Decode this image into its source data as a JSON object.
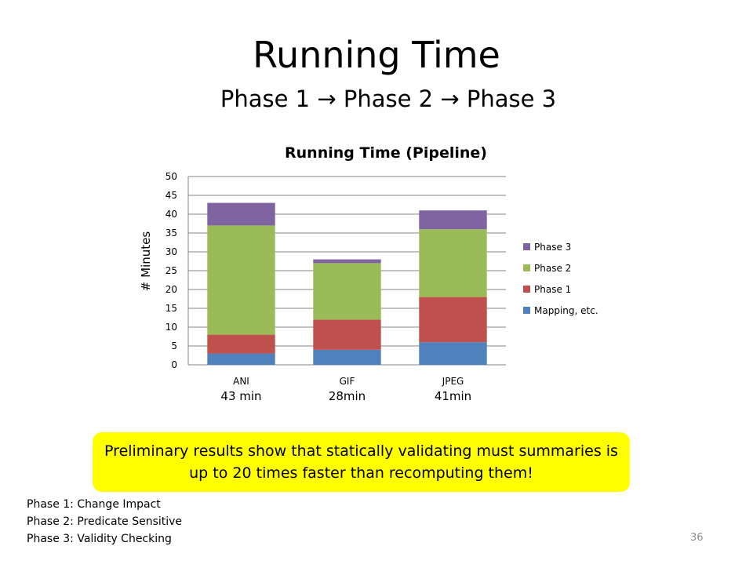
{
  "slide": {
    "title": "Running Time",
    "subtitle": "Phase 1 → Phase 2 → Phase 3",
    "callout": "Preliminary results show that statically validating must summaries is up to 20 times faster than recomputing them!",
    "notes": [
      "Phase 1: Change Impact",
      "Phase 2: Predicate Sensitive",
      "Phase 3: Validity Checking"
    ],
    "page_number": "36"
  },
  "chart_data": {
    "type": "bar",
    "stacked": true,
    "title": "Running Time (Pipeline)",
    "xlabel": "",
    "ylabel": "# Minutes",
    "ylim": [
      0,
      50
    ],
    "yticks": [
      0,
      5,
      10,
      15,
      20,
      25,
      30,
      35,
      40,
      45,
      50
    ],
    "grid": true,
    "legend_position": "right",
    "categories": [
      "ANI",
      "GIF",
      "JPEG"
    ],
    "category_totals": [
      "43 min",
      "28min",
      "41min"
    ],
    "series": [
      {
        "name": "Mapping, etc.",
        "color": "#4f81bd",
        "values": [
          3,
          4,
          6
        ]
      },
      {
        "name": "Phase 1",
        "color": "#c0504d",
        "values": [
          5,
          8,
          12
        ]
      },
      {
        "name": "Phase 2",
        "color": "#9bbb59",
        "values": [
          29,
          15,
          18
        ]
      },
      {
        "name": "Phase 3",
        "color": "#8064a2",
        "values": [
          6,
          1,
          5
        ]
      }
    ]
  }
}
